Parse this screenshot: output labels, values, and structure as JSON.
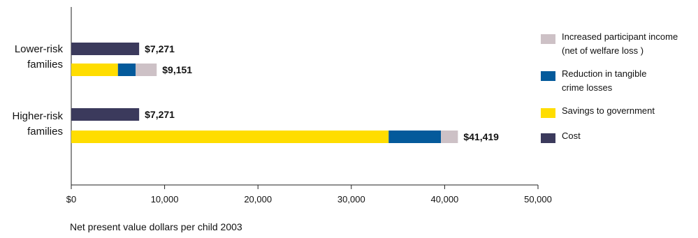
{
  "chart_data": {
    "type": "bar",
    "orientation": "horizontal",
    "stacked": true,
    "xlabel": "Net present value dollars per child 2003",
    "xlim": [
      0,
      50000
    ],
    "x_ticks": [
      0,
      10000,
      20000,
      30000,
      40000,
      50000
    ],
    "x_tick_labels": [
      "$0",
      "10,000",
      "20,000",
      "30,000",
      "40,000",
      "50,000"
    ],
    "grid": false,
    "legend_position": "right",
    "groups": [
      {
        "label": [
          "Lower-risk",
          "families"
        ],
        "bars": [
          {
            "kind": "cost",
            "segments": [
              {
                "series": "Cost",
                "value": 7271
              }
            ],
            "total_label": "$7,271"
          },
          {
            "kind": "benefit",
            "segments": [
              {
                "series": "Savings to government",
                "value": 5000
              },
              {
                "series": "Reduction in tangible crime losses",
                "value": 1900
              },
              {
                "series": "Increased participant income (net of welfare loss )",
                "value": 2251
              }
            ],
            "total_label": "$9,151"
          }
        ]
      },
      {
        "label": [
          "Higher-risk",
          "families"
        ],
        "bars": [
          {
            "kind": "cost",
            "segments": [
              {
                "series": "Cost",
                "value": 7271
              }
            ],
            "total_label": "$7,271"
          },
          {
            "kind": "benefit",
            "segments": [
              {
                "series": "Savings to government",
                "value": 34000
              },
              {
                "series": "Reduction in tangible crime losses",
                "value": 5600
              },
              {
                "series": "Increased participant income (net of welfare loss )",
                "value": 1819
              }
            ],
            "total_label": "$41,419"
          }
        ]
      }
    ],
    "series": [
      {
        "name": "Increased participant income (net of welfare loss )",
        "lines": [
          "Increased participant income",
          "(net of welfare loss )"
        ],
        "color": "#cdc1c6"
      },
      {
        "name": "Reduction in tangible crime losses",
        "lines": [
          "Reduction in tangible",
          "crime losses"
        ],
        "color": "#045a9b"
      },
      {
        "name": "Savings to government",
        "lines": [
          "Savings to government"
        ],
        "color": "#ffdd00"
      },
      {
        "name": "Cost",
        "lines": [
          "Cost"
        ],
        "color": "#3b3a5c"
      }
    ]
  }
}
